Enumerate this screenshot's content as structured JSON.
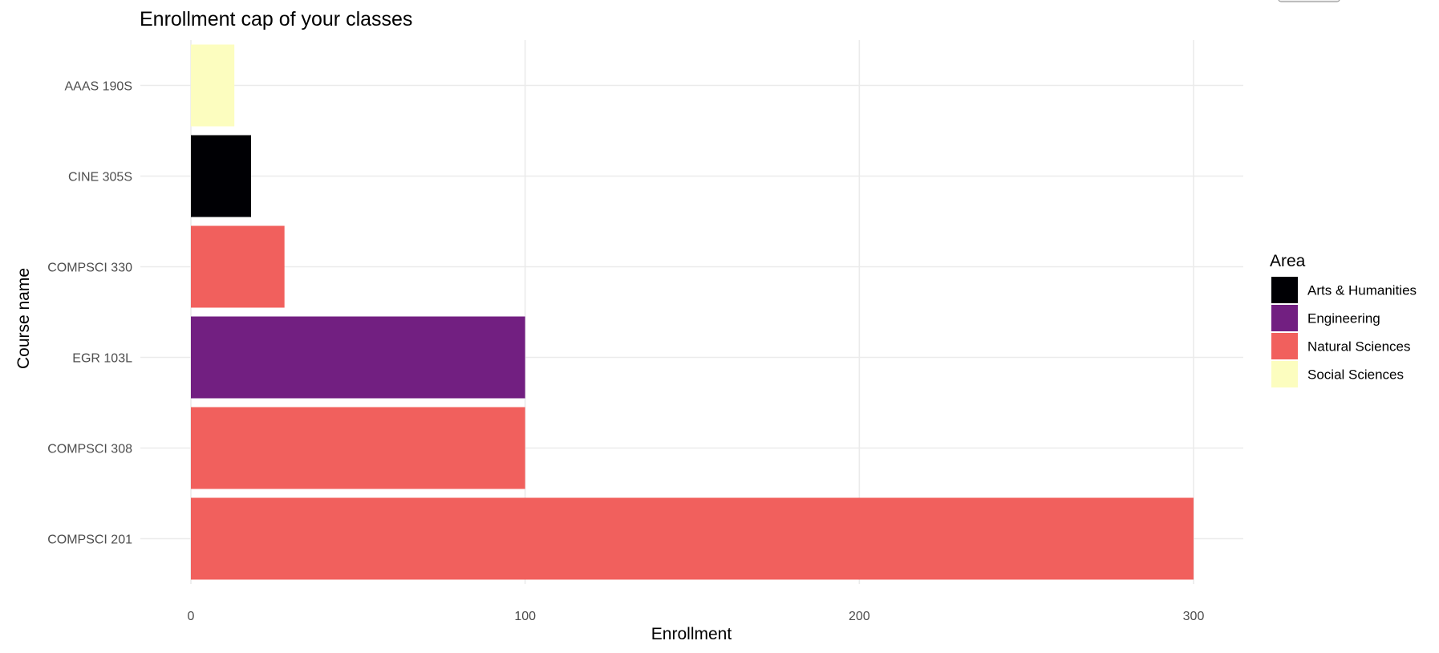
{
  "chart_data": {
    "type": "bar",
    "orientation": "horizontal",
    "title": "Enrollment cap of your classes",
    "xlabel": "Enrollment",
    "ylabel": "Course name",
    "xlim": [
      0,
      315
    ],
    "x_ticks": [
      0,
      100,
      200,
      300
    ],
    "grid": true,
    "categories": [
      "COMPSCI 201",
      "COMPSCI 308",
      "EGR 103L",
      "COMPSCI 330",
      "CINE 305S",
      "AAAS 190S"
    ],
    "values": [
      300,
      100,
      100,
      28,
      18,
      13
    ],
    "area": [
      "Natural Sciences",
      "Natural Sciences",
      "Engineering",
      "Natural Sciences",
      "Arts & Humanities",
      "Social Sciences"
    ],
    "legend": {
      "title": "Area",
      "position": "right",
      "entries": [
        {
          "label": "Arts & Humanities",
          "color": "#000004"
        },
        {
          "label": "Engineering",
          "color": "#721f81"
        },
        {
          "label": "Natural Sciences",
          "color": "#f1605d"
        },
        {
          "label": "Social Sciences",
          "color": "#fcfdbf"
        }
      ]
    }
  }
}
